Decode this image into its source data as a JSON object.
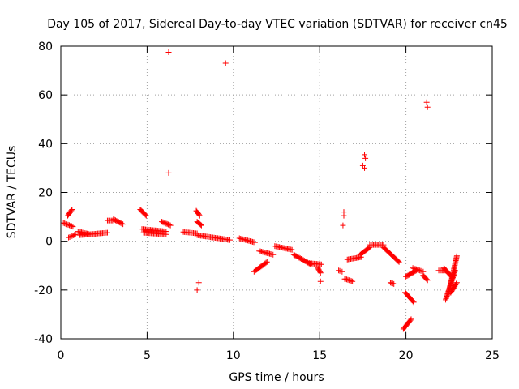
{
  "chart_data": {
    "type": "scatter",
    "title": "Day 105 of 2017, Sidereal Day-to-day VTEC variation (SDTVAR) for receiver cn45",
    "xlabel": "GPS time / hours",
    "ylabel": "SDTVAR / TECUs",
    "xlim": [
      0,
      25
    ],
    "ylim": [
      -40,
      80
    ],
    "x_ticks": [
      0,
      5,
      10,
      15,
      20,
      25
    ],
    "y_ticks": [
      -40,
      -20,
      0,
      20,
      40,
      60,
      80
    ],
    "x_tick_labels": [
      "0",
      "5",
      "10",
      "15",
      "20",
      "25"
    ],
    "y_tick_labels": [
      "-40",
      "-20",
      "0",
      "20",
      "40",
      "60",
      "80"
    ],
    "grid": true,
    "marker": "+",
    "series_color": "#ff0000",
    "segments": [
      {
        "x": [
          0.15,
          0.7
        ],
        "y": [
          7.5,
          6.0
        ]
      },
      {
        "x": [
          0.4,
          0.65
        ],
        "y": [
          10.5,
          13.0
        ]
      },
      {
        "x": [
          0.45,
          0.85
        ],
        "y": [
          1.5,
          2.8
        ]
      },
      {
        "x": [
          1.0,
          1.6
        ],
        "y": [
          4.0,
          3.0
        ]
      },
      {
        "x": [
          1.1,
          2.7
        ],
        "y": [
          2.5,
          3.5
        ]
      },
      {
        "x": [
          2.7,
          3.0
        ],
        "y": [
          8.5,
          8.5
        ]
      },
      {
        "x": [
          3.05,
          3.6
        ],
        "y": [
          9.0,
          7.0
        ]
      },
      {
        "x": [
          4.6,
          4.95
        ],
        "y": [
          13.0,
          10.5
        ]
      },
      {
        "x": [
          4.7,
          6.1
        ],
        "y": [
          5.0,
          4.0
        ]
      },
      {
        "x": [
          4.8,
          6.1
        ],
        "y": [
          3.5,
          2.8
        ]
      },
      {
        "x": [
          5.85,
          6.35
        ],
        "y": [
          8.0,
          6.5
        ]
      },
      {
        "x": [
          7.1,
          7.9
        ],
        "y": [
          3.8,
          3.2
        ]
      },
      {
        "x": [
          7.9,
          9.8
        ],
        "y": [
          2.5,
          0.5
        ]
      },
      {
        "x": [
          7.85,
          8.05
        ],
        "y": [
          12.5,
          10.5
        ]
      },
      {
        "x": [
          7.9,
          8.15
        ],
        "y": [
          8.0,
          6.5
        ]
      },
      {
        "x": [
          10.35,
          11.25
        ],
        "y": [
          1.2,
          -0.5
        ]
      },
      {
        "x": [
          11.2,
          11.95
        ],
        "y": [
          -12.5,
          -8.5
        ]
      },
      {
        "x": [
          11.5,
          12.3
        ],
        "y": [
          -4.0,
          -5.5
        ]
      },
      {
        "x": [
          12.4,
          13.4
        ],
        "y": [
          -2.0,
          -3.5
        ]
      },
      {
        "x": [
          13.5,
          14.5
        ],
        "y": [
          -5.5,
          -9.5
        ]
      },
      {
        "x": [
          14.4,
          15.1
        ],
        "y": [
          -9.0,
          -9.5
        ]
      },
      {
        "x": [
          14.9,
          15.05
        ],
        "y": [
          -11.0,
          -13.0
        ]
      },
      {
        "x": [
          16.1,
          16.3
        ],
        "y": [
          -12.0,
          -12.5
        ]
      },
      {
        "x": [
          16.5,
          16.9
        ],
        "y": [
          -15.5,
          -16.5
        ]
      },
      {
        "x": [
          16.6,
          17.4
        ],
        "y": [
          -7.5,
          -6.5
        ]
      },
      {
        "x": [
          17.35,
          17.9
        ],
        "y": [
          -5.5,
          -2.5
        ]
      },
      {
        "x": [
          17.9,
          18.7
        ],
        "y": [
          -1.5,
          -1.5
        ]
      },
      {
        "x": [
          18.7,
          19.6
        ],
        "y": [
          -2.5,
          -8.5
        ]
      },
      {
        "x": [
          19.1,
          19.3
        ],
        "y": [
          -17.0,
          -17.5
        ]
      },
      {
        "x": [
          19.85,
          20.3
        ],
        "y": [
          -36.0,
          -32.0
        ]
      },
      {
        "x": [
          19.95,
          20.45
        ],
        "y": [
          -21.0,
          -25.0
        ]
      },
      {
        "x": [
          20.0,
          20.6
        ],
        "y": [
          -14.5,
          -12.0
        ]
      },
      {
        "x": [
          20.4,
          21.0
        ],
        "y": [
          -11.0,
          -12.5
        ]
      },
      {
        "x": [
          21.0,
          21.25
        ],
        "y": [
          -14.0,
          -16.0
        ]
      },
      {
        "x": [
          21.9,
          22.3
        ],
        "y": [
          -12.0,
          -12.0
        ]
      },
      {
        "x": [
          22.2,
          22.7
        ],
        "y": [
          -11.0,
          -15.0
        ]
      },
      {
        "x": [
          22.3,
          22.85
        ],
        "y": [
          -24.0,
          -12.0
        ]
      },
      {
        "x": [
          22.45,
          22.95
        ],
        "y": [
          -22.0,
          -6.0
        ]
      },
      {
        "x": [
          22.6,
          22.95
        ],
        "y": [
          -21.0,
          -17.0
        ]
      }
    ],
    "points": [
      {
        "x": 6.25,
        "y": 77.5
      },
      {
        "x": 9.55,
        "y": 73.0
      },
      {
        "x": 6.25,
        "y": 28.0
      },
      {
        "x": 7.9,
        "y": -20.0
      },
      {
        "x": 8.0,
        "y": -17.0
      },
      {
        "x": 16.4,
        "y": 12.0
      },
      {
        "x": 16.4,
        "y": 10.5
      },
      {
        "x": 16.35,
        "y": 6.5
      },
      {
        "x": 16.45,
        "y": -15.5
      },
      {
        "x": 15.05,
        "y": -16.5
      },
      {
        "x": 17.6,
        "y": 35.5
      },
      {
        "x": 17.65,
        "y": 34.0
      },
      {
        "x": 17.5,
        "y": 31.0
      },
      {
        "x": 17.6,
        "y": 30.0
      },
      {
        "x": 21.2,
        "y": 57.0
      },
      {
        "x": 21.25,
        "y": 55.0
      }
    ]
  }
}
